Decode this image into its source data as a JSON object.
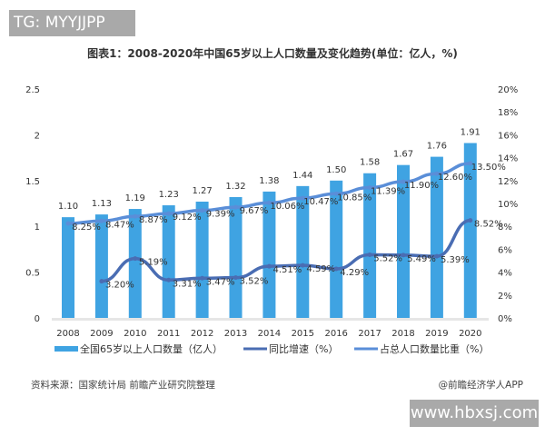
{
  "watermark_top": "TG: MYYJJPP",
  "watermark_bottom": "www.hbxsj.com",
  "footer": {
    "source": "资料来源：国家统计局 前瞻产业研究院整理",
    "credit": "@前瞻经济学人APP"
  },
  "chart_data": {
    "type": "bar+line",
    "title": "图表1：2008-2020年中国65岁以上人口数量及变化趋势(单位：亿人，%)",
    "categories": [
      "2008",
      "2009",
      "2010",
      "2011",
      "2012",
      "2013",
      "2014",
      "2015",
      "2016",
      "2017",
      "2018",
      "2019",
      "2020"
    ],
    "left_axis": {
      "range": [
        0,
        2.5
      ],
      "ticks": [
        "0",
        "0.5",
        "1",
        "1.5",
        "2",
        "2.5"
      ]
    },
    "right_axis": {
      "range": [
        0,
        20
      ],
      "ticks": [
        "0%",
        "2%",
        "4%",
        "6%",
        "8%",
        "10%",
        "12%",
        "14%",
        "16%",
        "18%",
        "20%"
      ]
    },
    "legend_position": "bottom",
    "series": [
      {
        "name": "全国65岁以上人口数量（亿人）",
        "kind": "bar",
        "axis": "left",
        "color": "#3fa3e2",
        "values": [
          1.1,
          1.13,
          1.19,
          1.23,
          1.27,
          1.32,
          1.38,
          1.44,
          1.5,
          1.58,
          1.67,
          1.76,
          1.91
        ],
        "labels": [
          "1.10",
          "1.13",
          "1.19",
          "1.23",
          "1.27",
          "1.32",
          "1.38",
          "1.44",
          "1.50",
          "1.58",
          "1.67",
          "1.76",
          "1.91"
        ]
      },
      {
        "name": "同比增速（%）",
        "kind": "line",
        "axis": "right",
        "color": "#4a6db3",
        "values": [
          null,
          3.2,
          5.19,
          3.31,
          3.47,
          3.52,
          4.51,
          4.59,
          4.29,
          5.52,
          5.49,
          5.39,
          8.52
        ],
        "labels": [
          "",
          "3.20%",
          "5.19%",
          "3.31%",
          "3.47%",
          "3.52%",
          "4.51%",
          "4.59%",
          "4.29%",
          "5.52%",
          "5.49%",
          "5.39%",
          "8.52%"
        ]
      },
      {
        "name": "占总人口数量比重（%）",
        "kind": "line",
        "axis": "right",
        "color": "#5a8ed8",
        "values": [
          8.25,
          8.47,
          8.87,
          9.12,
          9.39,
          9.67,
          10.06,
          10.47,
          10.85,
          11.39,
          11.9,
          12.6,
          13.5
        ],
        "labels": [
          "8.25%",
          "8.47%",
          "8.87%",
          "9.12%",
          "9.39%",
          "9.67%",
          "10.06%",
          "10.47%",
          "10.85%",
          "11.39%",
          "11.90%",
          "12.60%",
          "13.50%"
        ]
      }
    ]
  }
}
